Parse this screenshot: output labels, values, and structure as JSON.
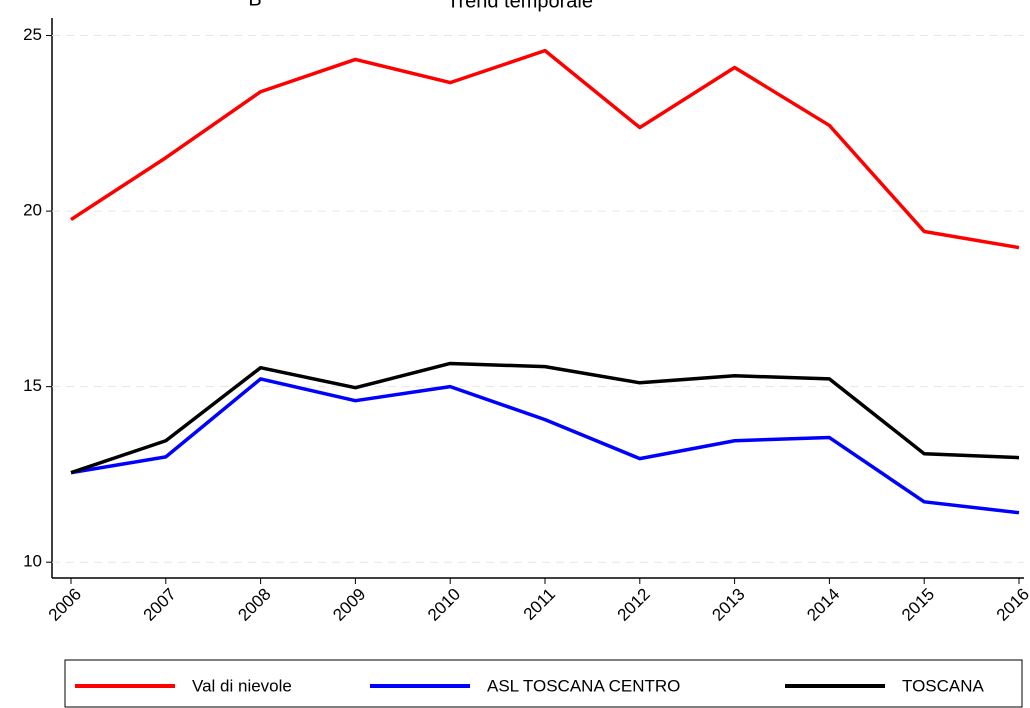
{
  "chart_data": {
    "type": "line",
    "title": "Trend temporale",
    "panel_label": "B",
    "categories": [
      "2006",
      "2007",
      "2008",
      "2009",
      "2010",
      "2011",
      "2012",
      "2013",
      "2014",
      "2015",
      "2016"
    ],
    "series": [
      {
        "name": "Val di nievole",
        "color": "#ff0000",
        "values": [
          19.76,
          21.52,
          23.4,
          24.32,
          23.66,
          24.57,
          22.38,
          24.09,
          22.44,
          19.42,
          18.96
        ]
      },
      {
        "name": "ASL TOSCANA CENTRO",
        "color": "#0000ff",
        "values": [
          12.55,
          13.0,
          15.22,
          14.6,
          15.0,
          14.06,
          12.95,
          13.46,
          13.55,
          11.72,
          11.41
        ]
      },
      {
        "name": "TOSCANA",
        "color": "#000000",
        "values": [
          12.55,
          13.46,
          15.54,
          14.97,
          15.66,
          15.57,
          15.11,
          15.31,
          15.22,
          13.09,
          12.98
        ]
      }
    ],
    "ylim": [
      9.55,
      25.5
    ],
    "yticks": [
      10,
      15,
      20,
      25
    ],
    "grid": true,
    "legend": "bottom"
  }
}
